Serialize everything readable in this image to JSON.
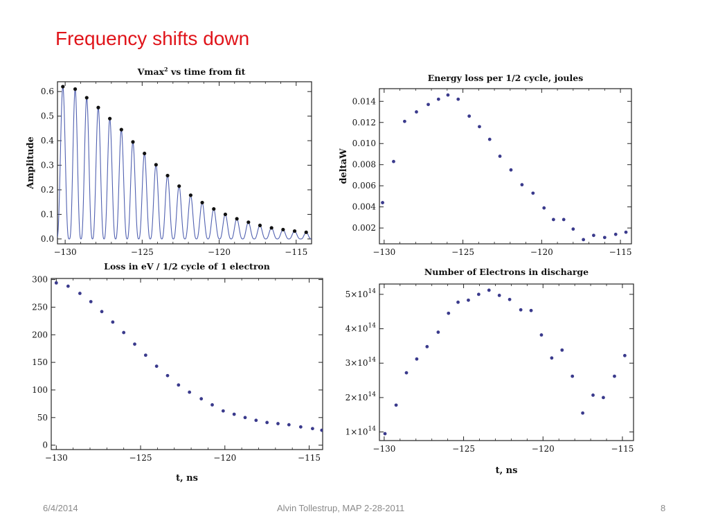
{
  "slide": {
    "title": "Frequency shifts down",
    "footer_date": "6/4/2014",
    "footer_center": "Alvin Tollestrup, MAP 2-28-2011",
    "page_number": "8"
  },
  "colors": {
    "title": "#e0141a",
    "footer": "#8a8a8a",
    "line": "#5060b0",
    "black_dots": "#111111",
    "blue_dots": "#3a3a8c"
  },
  "chart_data": [
    {
      "type": "line",
      "title": "Vmax",
      "title_superscript": "2",
      "title_suffix": " vs time from fit",
      "xlabel": "",
      "ylabel": "Amplitude",
      "xlim": [
        -130.5,
        -114
      ],
      "ylim": [
        -0.02,
        0.64
      ],
      "xticks": [
        -130,
        -125,
        -120,
        -115
      ],
      "xtick_labels": [
        "−130",
        "−125",
        "−120",
        "−115"
      ],
      "yticks": [
        0,
        0.1,
        0.2,
        0.3,
        0.4,
        0.5,
        0.6
      ],
      "ytick_labels": [
        "0.0",
        "0.1",
        "0.2",
        "0.3",
        "0.4",
        "0.5",
        "0.6"
      ],
      "oscillation": {
        "period_ns": 0.68,
        "decay_floor": 0.025
      },
      "series": [
        {
          "style": "oscillation",
          "peaks_x": [
            -130.15,
            -129.35,
            -128.6,
            -127.85,
            -127.1,
            -126.35,
            -125.6,
            -124.85,
            -124.1,
            -123.35,
            -122.6,
            -121.85,
            -121.1,
            -120.35,
            -119.6,
            -118.85,
            -118.1,
            -117.35,
            -116.6,
            -115.85,
            -115.1,
            -114.35
          ],
          "peaks_y": [
            0.62,
            0.61,
            0.575,
            0.535,
            0.49,
            0.445,
            0.395,
            0.348,
            0.302,
            0.258,
            0.215,
            0.178,
            0.148,
            0.122,
            0.1,
            0.082,
            0.068,
            0.055,
            0.045,
            0.038,
            0.032,
            0.027
          ]
        }
      ]
    },
    {
      "type": "scatter",
      "title": "Energy loss per 1/2 cycle, joules",
      "xlabel": "",
      "ylabel": "deltaW",
      "xlim": [
        -130.3,
        -114.3
      ],
      "ylim": [
        0.0005,
        0.0152
      ],
      "xticks": [
        -130,
        -125,
        -120,
        -115
      ],
      "xtick_labels": [
        "−130",
        "−125",
        "−120",
        "−115"
      ],
      "yticks": [
        0.002,
        0.004,
        0.006,
        0.008,
        0.01,
        0.012,
        0.014
      ],
      "ytick_labels": [
        "0.002",
        "0.004",
        "0.006",
        "0.008",
        "0.010",
        "0.012",
        "0.014"
      ],
      "series": [
        {
          "x": [
            -130.1,
            -129.4,
            -128.7,
            -127.95,
            -127.2,
            -126.55,
            -125.95,
            -125.3,
            -124.6,
            -123.95,
            -123.3,
            -122.65,
            -121.95,
            -121.25,
            -120.55,
            -119.85,
            -119.25,
            -118.6,
            -118.0,
            -117.35,
            -116.7,
            -116.0,
            -115.3,
            -114.65
          ],
          "y": [
            0.0044,
            0.0083,
            0.0121,
            0.013,
            0.0137,
            0.0142,
            0.0146,
            0.0142,
            0.0126,
            0.0116,
            0.0104,
            0.0088,
            0.0075,
            0.0061,
            0.0053,
            0.0039,
            0.0028,
            0.0028,
            0.0019,
            0.0009,
            0.0013,
            0.0011,
            0.0014,
            0.0016
          ]
        }
      ]
    },
    {
      "type": "scatter",
      "title": "Loss in eV / 1/2 cycle of 1 electron",
      "xlabel": "t, ns",
      "ylabel": "",
      "xlim": [
        -130.3,
        -114.2
      ],
      "ylim": [
        -8,
        302
      ],
      "xticks": [
        -130,
        -125,
        -120,
        -115
      ],
      "xtick_labels": [
        "−130",
        "−125",
        "−120",
        "−115"
      ],
      "yticks": [
        0,
        50,
        100,
        150,
        200,
        250,
        300
      ],
      "ytick_labels": [
        "0",
        "50",
        "100",
        "150",
        "200",
        "250",
        "300"
      ],
      "series": [
        {
          "x": [
            -130.0,
            -129.3,
            -128.6,
            -127.95,
            -127.3,
            -126.65,
            -126.0,
            -125.35,
            -124.7,
            -124.05,
            -123.4,
            -122.75,
            -122.1,
            -121.4,
            -120.75,
            -120.1,
            -119.45,
            -118.8,
            -118.15,
            -117.5,
            -116.85,
            -116.2,
            -115.5,
            -114.8,
            -114.25
          ],
          "y": [
            294,
            288,
            275,
            260,
            242,
            223,
            204,
            183,
            163,
            143,
            126,
            109,
            96,
            84,
            73,
            62,
            56,
            50,
            45,
            41,
            39,
            37,
            33,
            30,
            27
          ]
        }
      ]
    },
    {
      "type": "scatter",
      "title": "Number of Electrons in discharge",
      "xlabel": "t, ns",
      "ylabel": "",
      "xlim": [
        -130.3,
        -114.3
      ],
      "ylim": [
        75000000000000.0,
        530000000000000.0
      ],
      "xticks": [
        -130,
        -125,
        -120,
        -115
      ],
      "xtick_labels": [
        "−130",
        "−125",
        "−120",
        "−115"
      ],
      "yticks": [
        100000000000000.0,
        200000000000000.0,
        300000000000000.0,
        400000000000000.0,
        500000000000000.0
      ],
      "ytick_mantissas": [
        "1",
        "2",
        "3",
        "4",
        "5"
      ],
      "ytick_times": "×10",
      "ytick_exponent": "14",
      "series": [
        {
          "x": [
            -129.95,
            -129.25,
            -128.6,
            -127.95,
            -127.3,
            -126.6,
            -125.95,
            -125.35,
            -124.7,
            -124.05,
            -123.4,
            -122.75,
            -122.1,
            -121.4,
            -120.75,
            -120.1,
            -119.45,
            -118.8,
            -118.15,
            -117.5,
            -116.85,
            -116.2,
            -115.5,
            -114.85
          ],
          "y": [
            95000000000000.0,
            178000000000000.0,
            272000000000000.0,
            312000000000000.0,
            348000000000000.0,
            390000000000000.0,
            445000000000000.0,
            477000000000000.0,
            483000000000000.0,
            500000000000000.0,
            512000000000000.0,
            497000000000000.0,
            485000000000000.0,
            455000000000000.0,
            453000000000000.0,
            382000000000000.0,
            315000000000000.0,
            338000000000000.0,
            262000000000000.0,
            155000000000000.0,
            207000000000000.0,
            200000000000000.0,
            262000000000000.0,
            322000000000000.0
          ]
        }
      ]
    }
  ]
}
